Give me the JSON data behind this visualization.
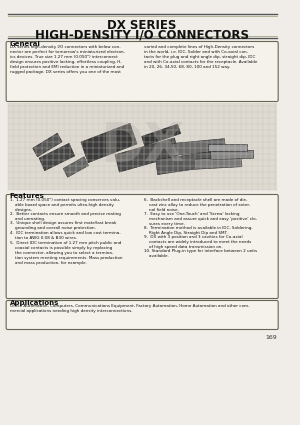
{
  "title_line1": "DX SERIES",
  "title_line2": "HIGH-DENSITY I/O CONNECTORS",
  "page_bg": "#f0ede8",
  "section_general_title": "General",
  "general_text_left": "DX series high-density I/O connectors with below con-\nnector are perfect for tomorrow's miniaturized electron-\nics devices. True size 1.27 mm (0.050\") interconnect\ndesign ensures positive locking, effortless coupling, H-\nfield protection and EMI reduction in a miniaturized and\nrugged package. DX series offers you one of the most",
  "general_text_right": "varied and complete lines of High-Density connectors\nin the world, i.e. IDC, Solder and with Co-axial con-\ntacts for the plug and right angle dip, straight dip, IDC\nand with Co-axial contacts for the receptacle. Available\nin 20, 26, 34,50, 68, 80, 100 and 152 way.",
  "features_title": "Features",
  "feat_left": [
    "1.  1.27 mm (0.050\") contact spacing conserves valu-\n    able board space and permits ultra-high density\n    designs.",
    "2.  Better contacts ensure smooth and precise mating\n    and unmating.",
    "3.  Unique shell design assures first mate/last break\n    grounding and overall noise protection.",
    "4.  IDC termination allows quick and low cost termina-\n    tion to AWG 0.08 & B30 wires.",
    "5.  Direct IDC termination of 1.27 mm pitch public and\n    coaxial contacts is possible simply by replacing\n    the connector, allowing you to select a termina-\n    tion system meeting requirements. Mass production\n    and mass production, for example."
  ],
  "feat_right": [
    "6.  Backshell and receptacle shell are made of die-\n    cast zinc alloy to reduce the penetration of exter-\n    nal field noise.",
    "7.  Easy to use 'One-Touch' and 'Screw' locking\n    mechanism and assure quick and easy 'positive' clo-\n    sures every time.",
    "8.  Termination method is available in IDC, Soldering,\n    Right Angle Dip, Straight Dip and SMT.",
    "9.  DX with 3 position and 3 cavities for Co-axial\n    contacts are widely introduced to meet the needs\n    of high speed data transmission on.",
    "10. Standard Plug-in type for interface between 2 units\n    available."
  ],
  "applications_title": "Applications",
  "applications_text": "Office Automation, Computers, Communications Equipment, Factory Automation, Home Automation and other com-\nmercial applications needing high density interconnections.",
  "page_number": "169",
  "dark_line": "#555555",
  "light_line": "#999977",
  "title_color": "#111111",
  "box_edge": "#666655",
  "box_face": "#f5f2ec",
  "text_color": "#111111"
}
